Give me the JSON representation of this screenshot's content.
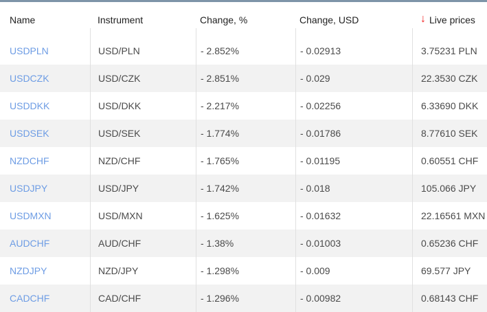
{
  "table": {
    "columns": [
      {
        "label": "Name"
      },
      {
        "label": "Instrument"
      },
      {
        "label": "Change, %"
      },
      {
        "label": "Change, USD"
      },
      {
        "label": "Live prices"
      }
    ],
    "sort_icon": {
      "name": "red-down-arrow-icon",
      "glyph": "↓"
    },
    "rows": [
      {
        "name": "USDPLN",
        "instrument": "USD/PLN",
        "change_pct": "- 2.852%",
        "change_usd": "- 0.02913",
        "live_price": "3.75231 PLN"
      },
      {
        "name": "USDCZK",
        "instrument": "USD/CZK",
        "change_pct": "- 2.851%",
        "change_usd": "- 0.029",
        "live_price": "22.3530 CZK"
      },
      {
        "name": "USDDKK",
        "instrument": "USD/DKK",
        "change_pct": "- 2.217%",
        "change_usd": "- 0.02256",
        "live_price": "6.33690 DKK"
      },
      {
        "name": "USDSEK",
        "instrument": "USD/SEK",
        "change_pct": "- 1.774%",
        "change_usd": "- 0.01786",
        "live_price": "8.77610 SEK"
      },
      {
        "name": "NZDCHF",
        "instrument": "NZD/CHF",
        "change_pct": "- 1.765%",
        "change_usd": "- 0.01195",
        "live_price": "0.60551 CHF"
      },
      {
        "name": "USDJPY",
        "instrument": "USD/JPY",
        "change_pct": "- 1.742%",
        "change_usd": "- 0.018",
        "live_price": "105.066 JPY"
      },
      {
        "name": "USDMXN",
        "instrument": "USD/MXN",
        "change_pct": "- 1.625%",
        "change_usd": "- 0.01632",
        "live_price": "22.16561 MXN"
      },
      {
        "name": "AUDCHF",
        "instrument": "AUD/CHF",
        "change_pct": "- 1.38%",
        "change_usd": "- 0.01003",
        "live_price": "0.65236 CHF"
      },
      {
        "name": "NZDJPY",
        "instrument": "NZD/JPY",
        "change_pct": "- 1.298%",
        "change_usd": "- 0.009",
        "live_price": "69.577 JPY"
      },
      {
        "name": "CADCHF",
        "instrument": "CAD/CHF",
        "change_pct": "- 1.296%",
        "change_usd": "- 0.00982",
        "live_price": "0.68143 CHF"
      }
    ]
  },
  "colors": {
    "accent_top_border": "#7e94a8",
    "link": "#6d9ce4",
    "stripe": "#f2f2f2",
    "separator": "#e0e0e0",
    "header_text": "#1f1f1f",
    "cell_text": "#4a4a4a",
    "sort_arrow_red": "#f21d1d"
  }
}
